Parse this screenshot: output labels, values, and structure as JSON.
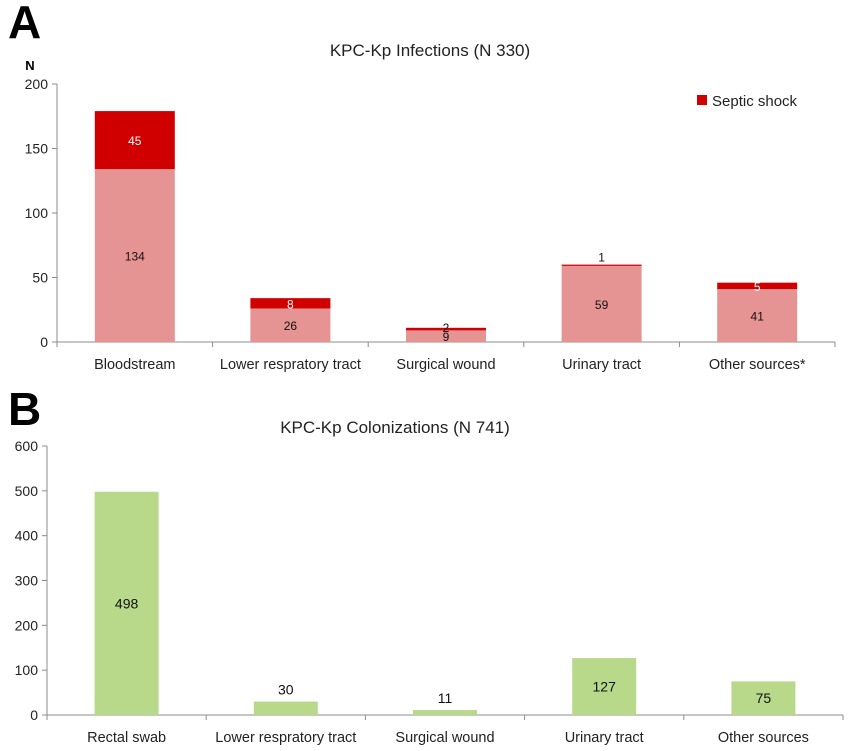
{
  "colors": {
    "base": "#e69393",
    "septic": "#d00000",
    "colonization": "#b8d98a",
    "axis": "#8c8c8c"
  },
  "chart_data": [
    {
      "panel": "A",
      "type": "bar",
      "stacked": true,
      "title": "KPC-Kp Infections (N 330)",
      "ylabel": "N",
      "ylim": [
        0,
        200
      ],
      "yticks": [
        0,
        50,
        100,
        150,
        200
      ],
      "categories": [
        "Bloodstream",
        "Lower respratory tract",
        "Surgical wound",
        "Urinary tract",
        "Other sources*"
      ],
      "series": [
        {
          "values": [
            134,
            26,
            9,
            59,
            41
          ],
          "color": "#e69393"
        },
        {
          "name": "Septic shock",
          "values": [
            45,
            8,
            2,
            1,
            5
          ],
          "color": "#d00000"
        }
      ],
      "legend": {
        "position": "top-right"
      },
      "grid": false
    },
    {
      "panel": "B",
      "type": "bar",
      "title": "KPC-Kp Colonizations (N 741)",
      "ylim": [
        0,
        600
      ],
      "yticks": [
        0,
        100,
        200,
        300,
        400,
        500,
        600
      ],
      "categories": [
        "Rectal swab",
        "Lower respratory tract",
        "Surgical wound",
        "Urinary tract",
        "Other sources"
      ],
      "series": [
        {
          "values": [
            498,
            30,
            11,
            127,
            75
          ],
          "color": "#b8d98a"
        }
      ],
      "grid": false
    }
  ]
}
